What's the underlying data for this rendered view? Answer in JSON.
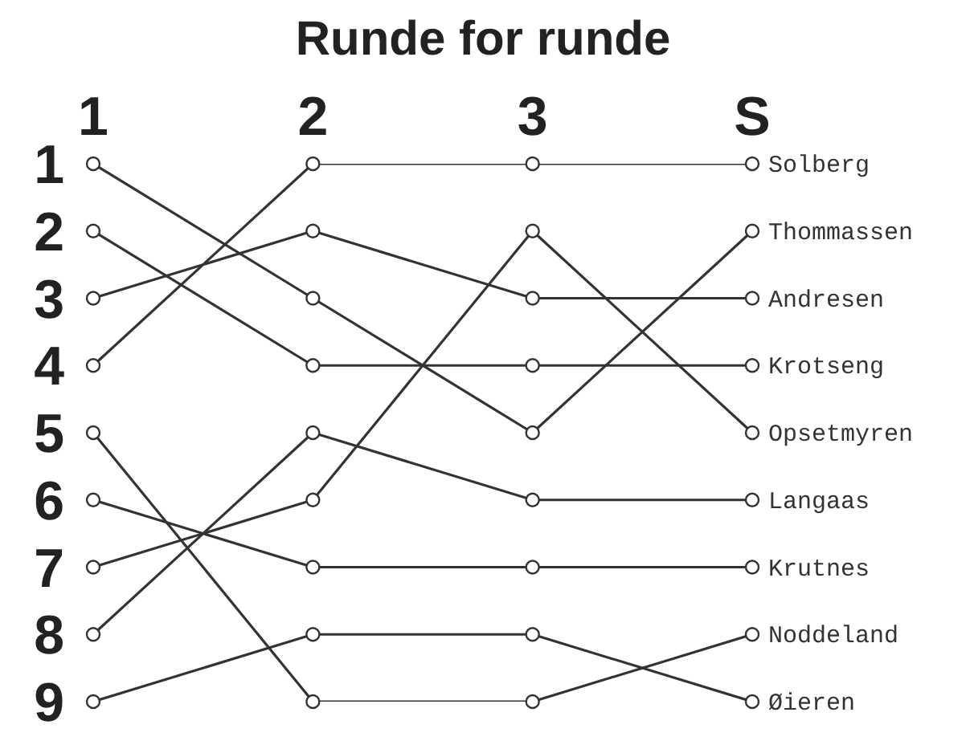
{
  "chart_data": {
    "type": "line",
    "title": "Runde for runde",
    "categories": [
      "1",
      "2",
      "3",
      "S"
    ],
    "series": [
      {
        "name": "Solberg",
        "color": "#333333",
        "values": [
          4,
          1,
          1,
          1
        ]
      },
      {
        "name": "Thommassen",
        "color": "#333333",
        "values": [
          1,
          3,
          5,
          2
        ]
      },
      {
        "name": "Andresen",
        "color": "#333333",
        "values": [
          3,
          2,
          3,
          3
        ]
      },
      {
        "name": "Krotseng",
        "color": "#333333",
        "values": [
          2,
          4,
          4,
          4
        ]
      },
      {
        "name": "Opsetmyren",
        "color": "#333333",
        "values": [
          7,
          6,
          2,
          5
        ]
      },
      {
        "name": "Langaas",
        "color": "#333333",
        "values": [
          8,
          5,
          6,
          6
        ]
      },
      {
        "name": "Krutnes",
        "color": "#333333",
        "values": [
          6,
          7,
          7,
          7
        ]
      },
      {
        "name": "Noddeland",
        "color": "#333333",
        "values": [
          5,
          9,
          9,
          8
        ]
      },
      {
        "name": "Øieren",
        "color": "#333333",
        "values": [
          9,
          8,
          8,
          9
        ]
      }
    ],
    "ylim": [
      9,
      1
    ],
    "yticks": [
      1,
      2,
      3,
      4,
      5,
      6,
      7,
      8,
      9
    ],
    "grid": false,
    "legend": false,
    "marker": "circle",
    "line_style": "solid"
  }
}
